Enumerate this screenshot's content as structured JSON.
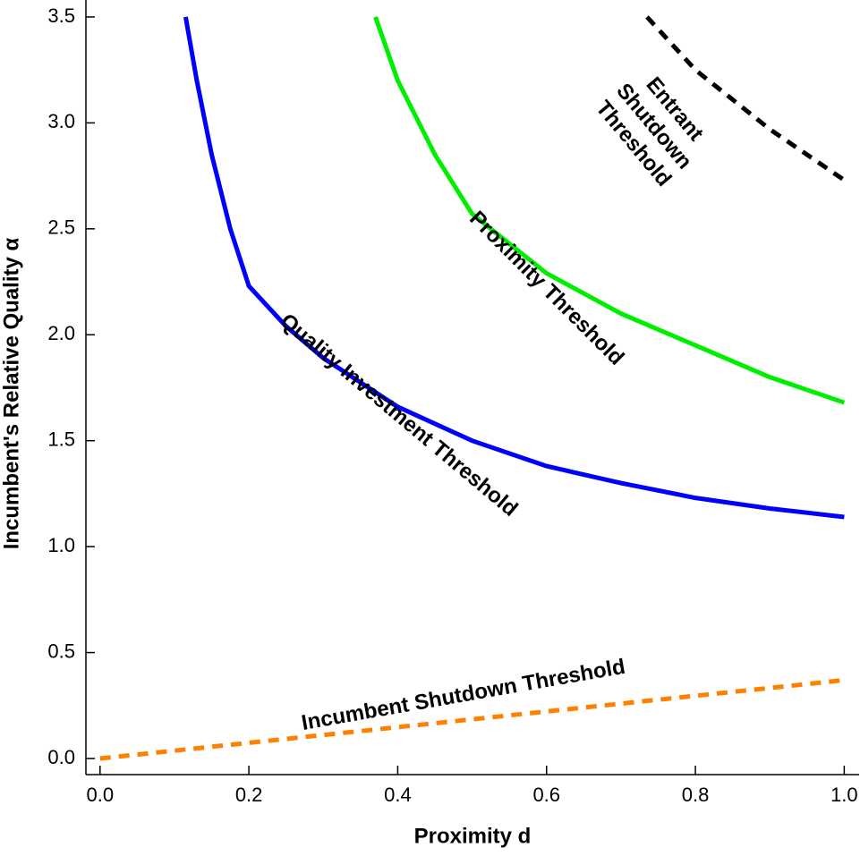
{
  "chart_data": {
    "type": "line",
    "xlabel": "Proximity d",
    "ylabel": "Incumbent's Relative Quality α",
    "xlim": [
      -0.019,
      1.02
    ],
    "ylim": [
      -0.076,
      3.58
    ],
    "xticks": [
      {
        "value": 0,
        "label": "0.0"
      },
      {
        "value": 0.2,
        "label": "0.2"
      },
      {
        "value": 0.4,
        "label": "0.4"
      },
      {
        "value": 0.6,
        "label": "0.6"
      },
      {
        "value": 0.8,
        "label": "0.8"
      },
      {
        "value": 1,
        "label": "1.0"
      }
    ],
    "yticks": [
      {
        "value": 0,
        "label": "0.0"
      },
      {
        "value": 0.5,
        "label": "0.5"
      },
      {
        "value": 1,
        "label": "1.0"
      },
      {
        "value": 1.5,
        "label": "1.5"
      },
      {
        "value": 2,
        "label": "2.0"
      },
      {
        "value": 2.5,
        "label": "2.5"
      },
      {
        "value": 3,
        "label": "3.0"
      },
      {
        "value": 3.5,
        "label": "3.5"
      }
    ],
    "series": [
      {
        "color": "#0000ff",
        "dashed": false,
        "x": [
          0.115,
          0.13,
          0.15,
          0.175,
          0.2,
          0.25,
          0.3,
          0.4,
          0.5,
          0.6,
          0.7,
          0.8,
          0.9,
          1.0
        ],
        "values": [
          3.5,
          3.2,
          2.85,
          2.5,
          2.23,
          2.04,
          1.89,
          1.66,
          1.5,
          1.38,
          1.3,
          1.23,
          1.18,
          1.14
        ]
      },
      {
        "color": "#00ee00",
        "dashed": false,
        "x": [
          0.37,
          0.4,
          0.45,
          0.5,
          0.6,
          0.7,
          0.8,
          0.9,
          1.0
        ],
        "values": [
          3.5,
          3.2,
          2.85,
          2.57,
          2.29,
          2.1,
          1.95,
          1.8,
          1.68
        ]
      },
      {
        "color": "#000000",
        "dashed": true,
        "x": [
          0.735,
          0.8,
          0.9,
          1.0
        ],
        "values": [
          3.5,
          3.25,
          2.97,
          2.73
        ]
      },
      {
        "color": "#ff8000",
        "dashed": true,
        "x": [
          0,
          1.0
        ],
        "values": [
          0,
          0.37
        ]
      }
    ],
    "annotations": [
      {
        "lines": [
          "Entrant",
          "Shutdown",
          "Threshold"
        ]
      },
      {
        "lines": [
          "Proximity Threshold"
        ]
      },
      {
        "lines": [
          "Quality Investment Threshold"
        ]
      },
      {
        "lines": [
          "Incumbent Shutdown Threshold"
        ]
      }
    ]
  }
}
